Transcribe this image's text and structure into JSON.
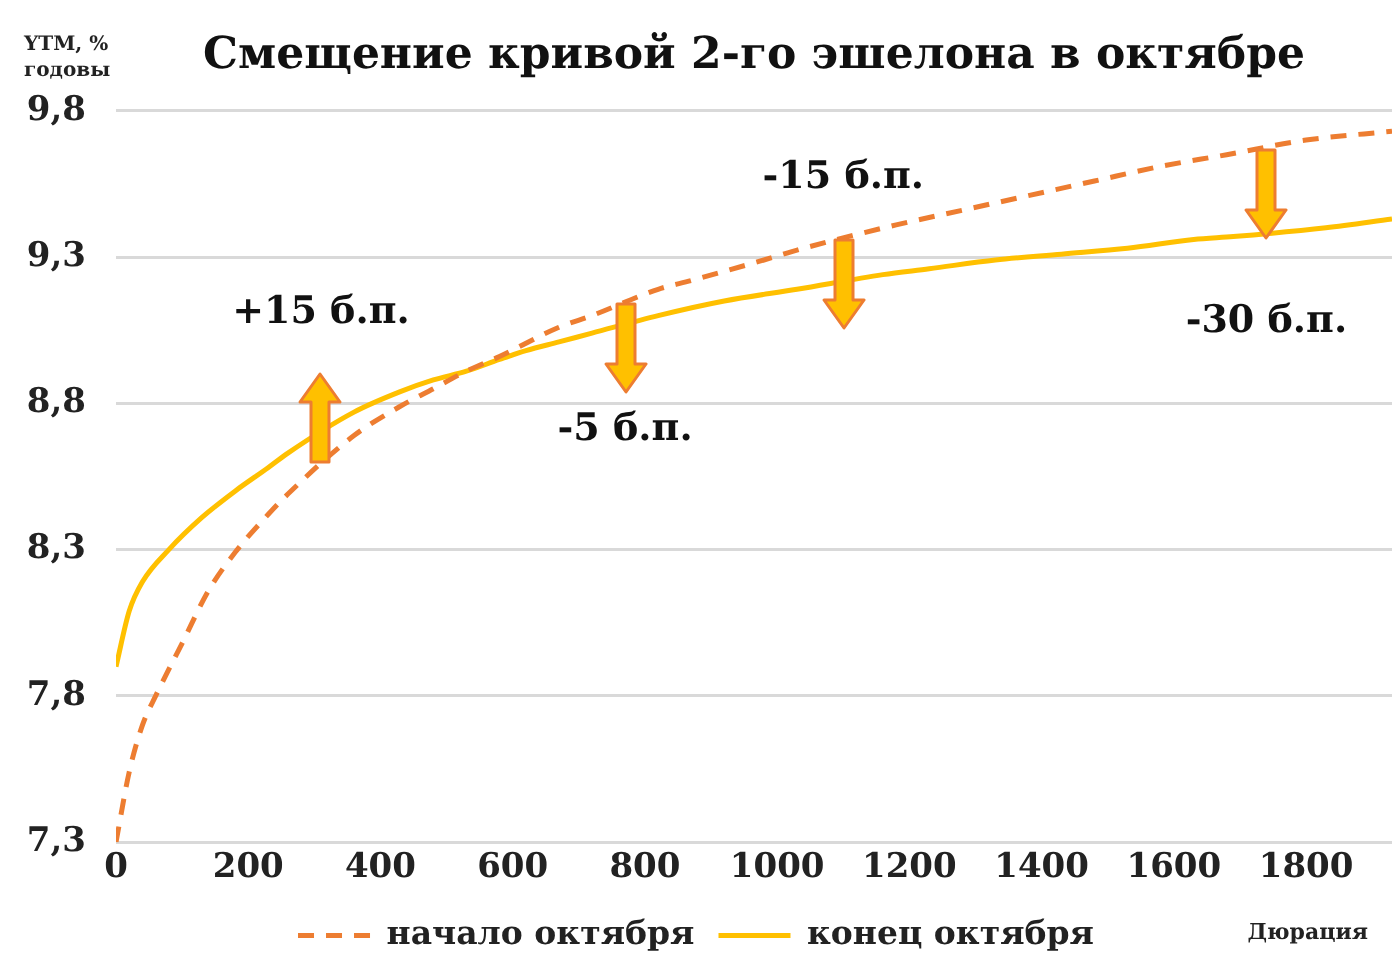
{
  "chart_data": {
    "type": "line",
    "title": "Смещение кривой 2-го эшелона в октябре",
    "xlabel": "Дюрация",
    "ylabel": "YTM, % годовы",
    "xlim": [
      0,
      1930
    ],
    "xticks": [
      0,
      200,
      400,
      600,
      800,
      1000,
      1200,
      1400,
      1600,
      1800
    ],
    "ylim": [
      7.3,
      9.8
    ],
    "yticks": [
      {
        "value": 7.3,
        "label": "7,3"
      },
      {
        "value": 7.8,
        "label": "7,8"
      },
      {
        "value": 8.3,
        "label": "8,3"
      },
      {
        "value": 8.8,
        "label": "8,8"
      },
      {
        "value": 9.3,
        "label": "9,3"
      },
      {
        "value": 9.8,
        "label": "9,8"
      }
    ],
    "grid": "y",
    "legend": "bottom",
    "series": [
      {
        "name": "начало октября",
        "color": "#ed7d31",
        "line_style": "dashed",
        "x": [
          0,
          20,
          40,
          60,
          100,
          140,
          180,
          230,
          260,
          360,
          430,
          480,
          530,
          580,
          670,
          720,
          820,
          870,
          980,
          1040,
          1180,
          1280,
          1380,
          1480,
          1580,
          1680,
          1800,
          1930
        ],
        "values": [
          7.3,
          7.54,
          7.7,
          7.8,
          7.98,
          8.16,
          8.29,
          8.42,
          8.49,
          8.69,
          8.79,
          8.85,
          8.91,
          8.96,
          9.06,
          9.1,
          9.19,
          9.22,
          9.29,
          9.33,
          9.41,
          9.46,
          9.51,
          9.56,
          9.61,
          9.65,
          9.7,
          9.73
        ]
      },
      {
        "name": "конец октября",
        "color": "#ffc000",
        "line_style": "solid",
        "x": [
          0,
          20,
          40,
          80,
          130,
          180,
          230,
          260,
          360,
          430,
          480,
          530,
          580,
          620,
          670,
          720,
          820,
          920,
          1030,
          1160,
          1230,
          1330,
          1430,
          1530,
          1630,
          1690,
          1830,
          1930
        ],
        "values": [
          7.9,
          8.09,
          8.19,
          8.3,
          8.41,
          8.5,
          8.58,
          8.63,
          8.77,
          8.84,
          8.88,
          8.91,
          8.95,
          8.98,
          9.01,
          9.04,
          9.1,
          9.15,
          9.19,
          9.24,
          9.26,
          9.29,
          9.31,
          9.33,
          9.36,
          9.37,
          9.4,
          9.43
        ]
      }
    ],
    "annotations": [
      {
        "text": "+15 б.п.",
        "x": 310,
        "y": 8.71
      },
      {
        "text": "-5 б.п.",
        "x": 770,
        "y": 9.07
      },
      {
        "text": "-15 б.п.",
        "x": 1100,
        "y": 9.36
      },
      {
        "text": "-30 б.п.",
        "x": 1740,
        "y": 9.38
      }
    ]
  }
}
